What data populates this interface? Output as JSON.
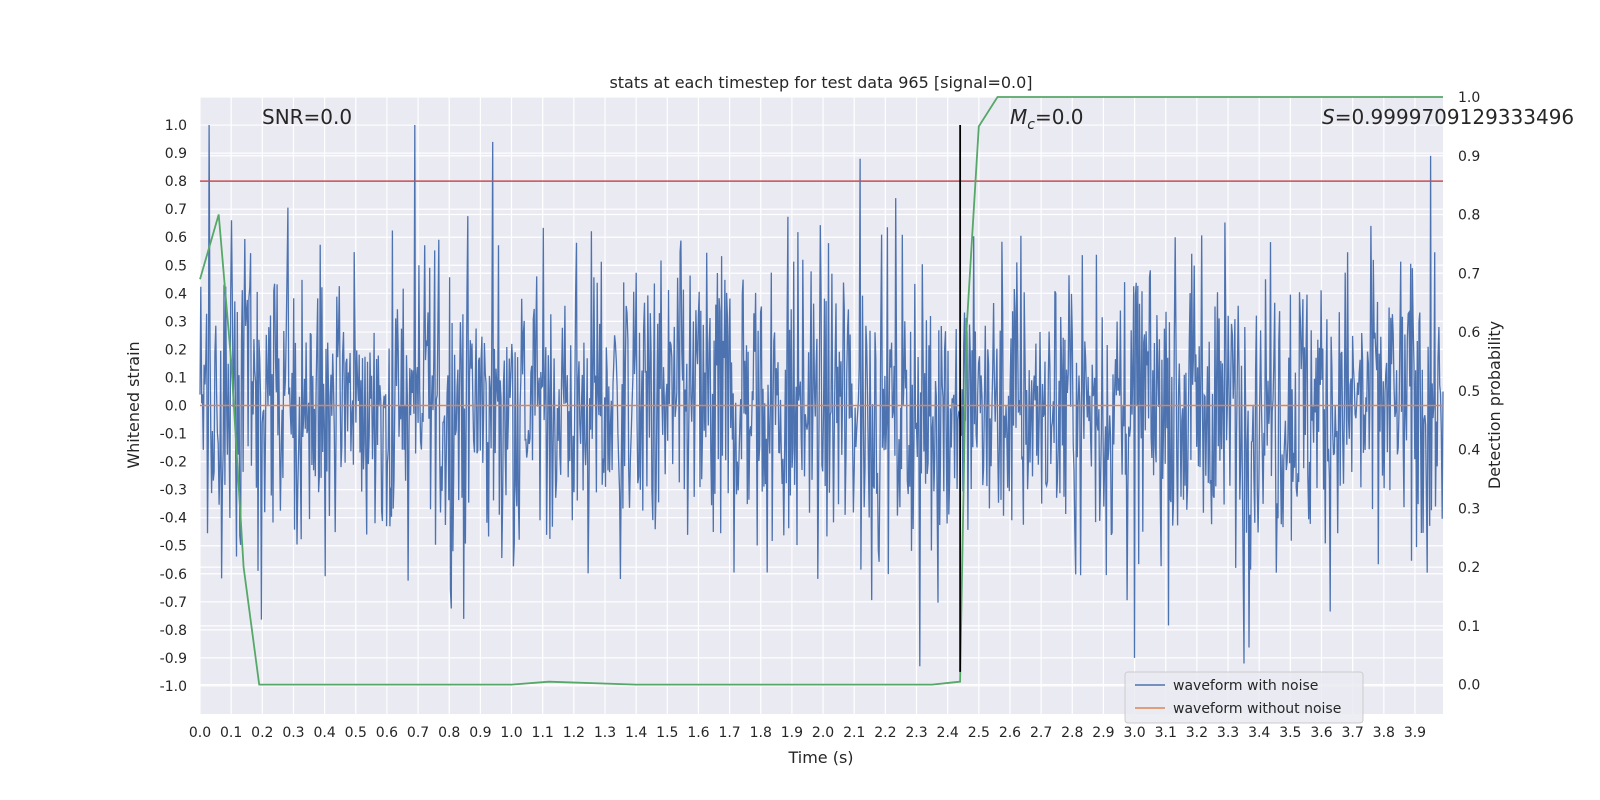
{
  "chart_data": {
    "type": "line",
    "title": "stats at each timestep for test data 965 [signal=0.0]",
    "xlabel": "Time (s)",
    "ylabel": "Whitened strain",
    "y2label": "Detection probability",
    "xlim": [
      0.0,
      3.99
    ],
    "ylim": [
      -1.1,
      1.1
    ],
    "y2lim": [
      -0.05,
      1.0
    ],
    "xticks": [
      "0.0",
      "0.1",
      "0.2",
      "0.3",
      "0.4",
      "0.5",
      "0.6",
      "0.7",
      "0.8",
      "0.9",
      "1.0",
      "1.1",
      "1.2",
      "1.3",
      "1.4",
      "1.5",
      "1.6",
      "1.7",
      "1.8",
      "1.9",
      "2.0",
      "2.1",
      "2.2",
      "2.3",
      "2.4",
      "2.5",
      "2.6",
      "2.7",
      "2.8",
      "2.9",
      "3.0",
      "3.1",
      "3.2",
      "3.3",
      "3.4",
      "3.5",
      "3.6",
      "3.7",
      "3.8",
      "3.9"
    ],
    "yticks": [
      "1.0",
      "0.9",
      "0.8",
      "0.7",
      "0.6",
      "0.5",
      "0.4",
      "0.3",
      "0.2",
      "0.1",
      "0.0",
      "-0.1",
      "-0.2",
      "-0.3",
      "-0.4",
      "-0.5",
      "-0.6",
      "-0.7",
      "-0.8",
      "-0.9",
      "-1.0"
    ],
    "y2ticks": [
      "1.0",
      "0.9",
      "0.8",
      "0.7",
      "0.6",
      "0.5",
      "0.4",
      "0.3",
      "0.2",
      "0.1",
      "0.0"
    ],
    "grid": true,
    "legend_position": "bottom-right",
    "annotations": {
      "snr": "SNR=0.0",
      "mc_symbol": "M",
      "mc_sub": "c",
      "mc_value": "=0.0",
      "s_symbol": "S",
      "s_value": "=0.9999709129333496"
    },
    "threshold_line": {
      "y": 0.8,
      "color": "#c44e52"
    },
    "marker_line": {
      "x": 2.44,
      "color": "#000000"
    },
    "series": [
      {
        "name": "waveform with noise",
        "color": "#4c72b0",
        "description_only": false,
        "noise_std": 0.27,
        "sample_count": 1500,
        "peaks": [
          [
            0.03,
            1.0
          ],
          [
            0.69,
            1.0
          ],
          [
            0.94,
            0.94
          ],
          [
            2.12,
            0.88
          ],
          [
            3.95,
            0.89
          ],
          [
            3.35,
            -0.92
          ],
          [
            2.31,
            -0.93
          ],
          [
            3.0,
            -0.9
          ]
        ]
      },
      {
        "name": "waveform without noise",
        "color": "#dd8452",
        "x": [
          0.0,
          3.99
        ],
        "y": [
          0.0,
          0.0
        ]
      },
      {
        "name": "",
        "color": "#55a868",
        "axis": "right",
        "x": [
          0.0,
          0.06,
          0.1,
          0.14,
          0.19,
          0.25,
          0.5,
          1.0,
          1.12,
          1.4,
          2.0,
          2.35,
          2.42,
          2.44,
          2.46,
          2.5,
          2.56,
          2.7,
          3.0,
          3.5,
          3.99
        ],
        "y": [
          0.69,
          0.8,
          0.55,
          0.2,
          0.0,
          0.0,
          0.0,
          0.0,
          0.005,
          0.0,
          0.0,
          0.0,
          0.004,
          0.005,
          0.6,
          0.95,
          1.0,
          1.0,
          1.0,
          1.0,
          1.0
        ]
      }
    ]
  }
}
